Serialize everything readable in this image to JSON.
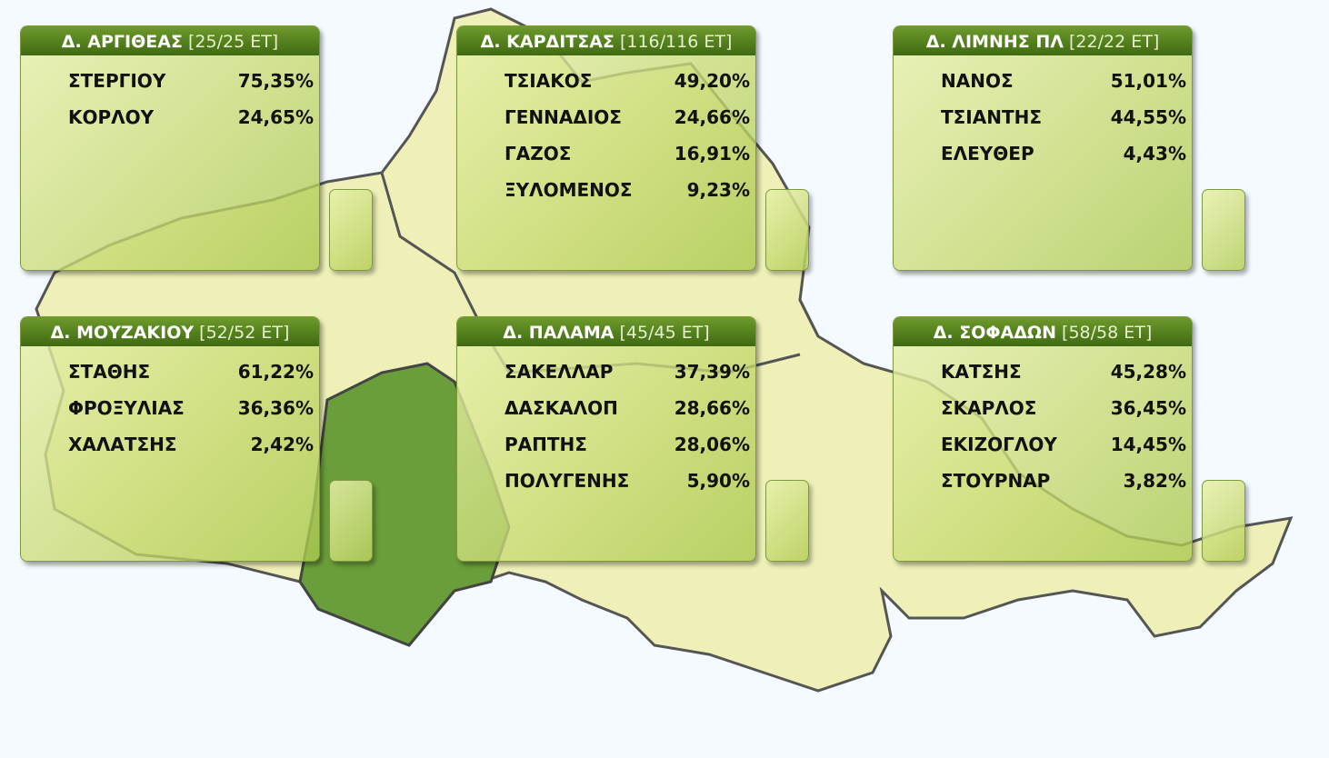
{
  "panels": [
    {
      "title": "Δ. ΑΡΓΙΘΕΑΣ",
      "count": "[25/25 ΕΤ]",
      "rows": [
        [
          "ΣΤΕΡΓΙΟΥ",
          "75,35%"
        ],
        [
          "ΚΟΡΛΟΥ",
          "24,65%"
        ]
      ]
    },
    {
      "title": "Δ. ΚΑΡΔΙΤΣΑΣ",
      "count": "[116/116 ΕΤ]",
      "rows": [
        [
          "ΤΣΙΑΚΟΣ",
          "49,20%"
        ],
        [
          "ΓΕΝΝΑΔΙΟΣ",
          "24,66%"
        ],
        [
          "ΓΑΖΟΣ",
          "16,91%"
        ],
        [
          "ΞΥΛΟΜΕΝΟΣ",
          "9,23%"
        ]
      ]
    },
    {
      "title": "Δ. ΛΙΜΝΗΣ ΠΛ",
      "count": "[22/22 ΕΤ]",
      "rows": [
        [
          "ΝΑΝΟΣ",
          "51,01%"
        ],
        [
          "ΤΣΙΑΝΤΗΣ",
          "44,55%"
        ],
        [
          "ΕΛΕΥΘΕΡ",
          "4,43%"
        ]
      ]
    },
    {
      "title": "Δ. ΜΟΥΖΑΚΙΟΥ",
      "count": "[52/52 ΕΤ]",
      "rows": [
        [
          "ΣΤΑΘΗΣ",
          "61,22%"
        ],
        [
          "ΦΡΟΞΥΛΙΑΣ",
          "36,36%"
        ],
        [
          "ΧΑΛΑΤΣΗΣ",
          "2,42%"
        ]
      ]
    },
    {
      "title": "Δ. ΠΑΛΑΜΑ",
      "count": "[45/45 ΕΤ]",
      "rows": [
        [
          "ΣΑΚΕΛΛΑΡ",
          "37,39%"
        ],
        [
          "ΔΑΣΚΑΛΟΠ",
          "28,66%"
        ],
        [
          "ΡΑΠΤΗΣ",
          "28,06%"
        ],
        [
          "ΠΟΛΥΓΕΝΗΣ",
          "5,90%"
        ]
      ]
    },
    {
      "title": "Δ. ΣΟΦΑΔΩΝ",
      "count": "[58/58 ΕΤ]",
      "rows": [
        [
          "ΚΑΤΣΗΣ",
          "45,28%"
        ],
        [
          "ΣΚΑΡΛΟΣ",
          "36,45%"
        ],
        [
          "ΕΚΙΖΟΓΛΟΥ",
          "14,45%"
        ],
        [
          "ΣΤΟΥΡΝΑΡ",
          "3,82%"
        ]
      ]
    }
  ]
}
